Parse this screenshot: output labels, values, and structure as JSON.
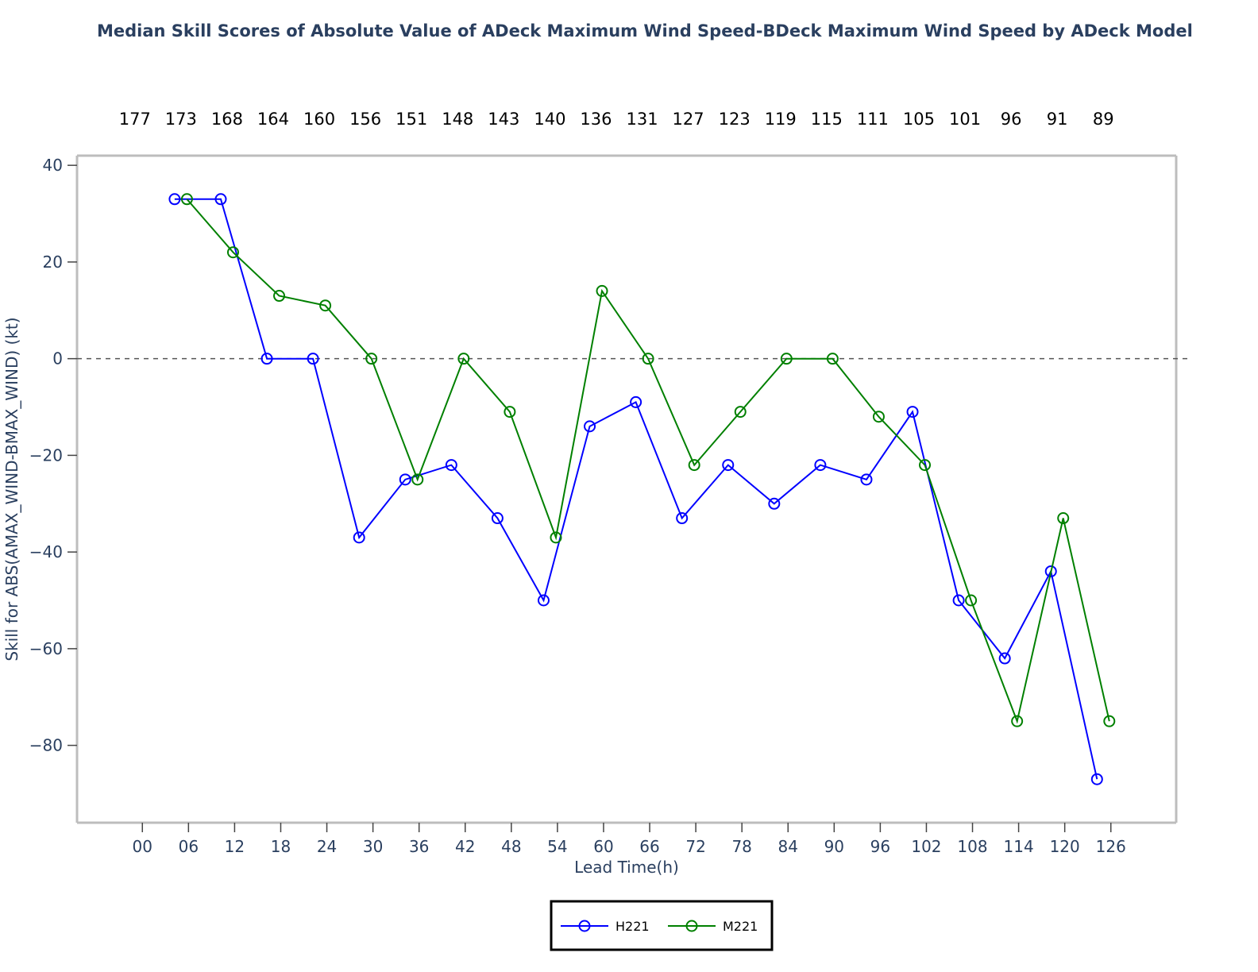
{
  "chart_data": {
    "type": "line",
    "title": "Median Skill Scores of Absolute Value of ADeck Maximum Wind Speed-BDeck Maximum Wind Speed by ADeck Model",
    "xlabel": "Lead Time(h)",
    "ylabel": "Skill  for ABS(AMAX_WIND-BMAX_WIND) (kt)",
    "xlim": [
      -8.5,
      134.5
    ],
    "ylim": [
      -96,
      42
    ],
    "x_ticks": [
      0,
      6,
      12,
      18,
      24,
      30,
      36,
      42,
      48,
      54,
      60,
      66,
      72,
      78,
      84,
      90,
      96,
      102,
      108,
      114,
      120,
      126
    ],
    "x_tick_labels": [
      "00",
      "06",
      "12",
      "18",
      "24",
      "30",
      "36",
      "42",
      "48",
      "54",
      "60",
      "66",
      "72",
      "78",
      "84",
      "90",
      "96",
      "102",
      "108",
      "114",
      "120",
      "126"
    ],
    "y_ticks": [
      40,
      20,
      0,
      -20,
      -40,
      -60,
      -80
    ],
    "y_tick_labels": [
      "40",
      "20",
      "0",
      "−20",
      "−40",
      "−60",
      "−80"
    ],
    "top_counts": [
      "177",
      "173",
      "168",
      "164",
      "160",
      "156",
      "151",
      "148",
      "143",
      "140",
      "136",
      "131",
      "127",
      "123",
      "119",
      "115",
      "111",
      "105",
      "101",
      "96",
      "91",
      "89"
    ],
    "reference_line": {
      "y": 0,
      "style": "dashed",
      "color": "#555555"
    },
    "grid": false,
    "legend_position": "bottom-center",
    "series": [
      {
        "name": "H221",
        "color": "#0000ff",
        "marker": "open-circle",
        "x": [
          4.2,
          10.2,
          16.2,
          22.2,
          28.2,
          34.2,
          40.2,
          46.2,
          52.2,
          58.2,
          64.2,
          70.2,
          76.2,
          82.2,
          88.2,
          94.2,
          100.2,
          106.2,
          112.2,
          118.2,
          124.2
        ],
        "y": [
          33,
          33,
          0,
          0,
          -37,
          -25,
          -22,
          -33,
          -50,
          -14,
          -9,
          -33,
          -22,
          -30,
          -22,
          -25,
          -11,
          -50,
          -62,
          -44,
          -87
        ]
      },
      {
        "name": "M221",
        "color": "#008000",
        "marker": "open-circle",
        "x": [
          5.8,
          11.8,
          17.8,
          23.8,
          29.8,
          35.8,
          41.8,
          47.8,
          53.8,
          59.8,
          65.8,
          71.8,
          77.8,
          83.8,
          89.8,
          95.8,
          101.8,
          107.8,
          113.8,
          119.8,
          125.8
        ],
        "y": [
          33,
          22,
          13,
          11,
          0,
          -25,
          0,
          -11,
          -37,
          14,
          0,
          -22,
          -11,
          0,
          0,
          -12,
          -22,
          -50,
          -75,
          -33,
          -75
        ]
      }
    ]
  }
}
